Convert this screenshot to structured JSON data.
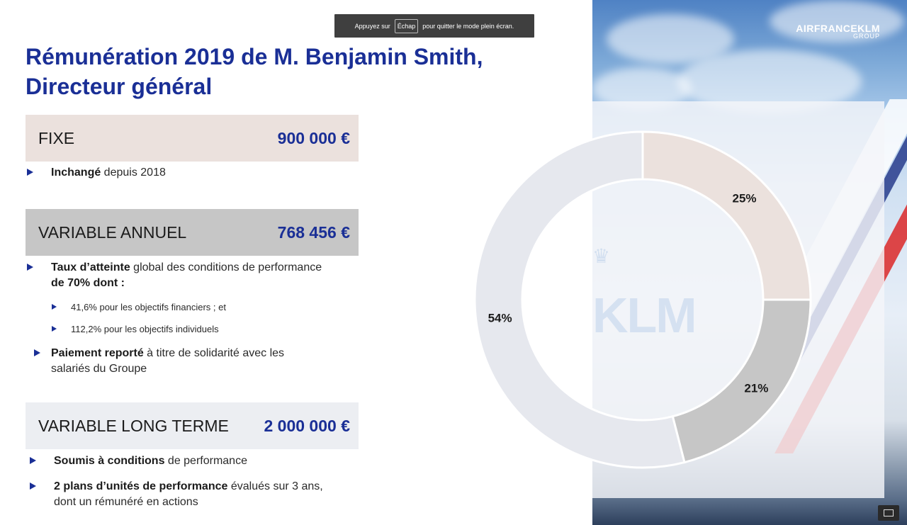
{
  "fullscreen_hint": {
    "prefix": "Appuyez sur",
    "key": "Échap",
    "suffix": "pour quitter le mode plein écran."
  },
  "logo": {
    "main": "AIRFRANCEKLM",
    "sub": "GROUP"
  },
  "title": {
    "line1": "Rémunération 2019 de M. Benjamin Smith,",
    "line2": "Directeur général"
  },
  "fixe": {
    "label": "FIXE",
    "value": "900 000 €",
    "bullet_bold": "Inchangé",
    "bullet_rest": " depuis 2018"
  },
  "variable_annuel": {
    "label": "VARIABLE ANNUEL",
    "value": "768 456 €",
    "bullet1_bold_a": "Taux d’atteinte",
    "bullet1_rest": " global des conditions de performance",
    "bullet1_bold_b": "de 70% dont :",
    "sub1": "41,6% pour les objectifs financiers ; et",
    "sub2": "112,2% pour les objectifs individuels",
    "bullet2_bold": "Paiement reporté",
    "bullet2_rest_a": " à titre de solidarité avec les",
    "bullet2_rest_b": "salariés du Groupe"
  },
  "variable_long_terme": {
    "label": "VARIABLE LONG TERME",
    "value": "2 000 000 €",
    "bullet1_bold": "Soumis à conditions",
    "bullet1_rest": " de performance",
    "bullet2_bold": "2 plans d’unités de performance",
    "bullet2_rest_a": " évalués sur 3 ans,",
    "bullet2_rest_b": "dont un rémunéré en actions"
  },
  "chart_data": {
    "type": "pie",
    "donut": true,
    "categories": [
      "Fixe",
      "Variable annuel",
      "Variable long terme"
    ],
    "values": [
      25,
      21,
      54
    ],
    "labels": [
      "25%",
      "21%",
      "54%"
    ],
    "colors": [
      "#ebe1dd",
      "#c6c6c6",
      "#e6e8ee"
    ]
  },
  "klm_watermark": "KLM"
}
